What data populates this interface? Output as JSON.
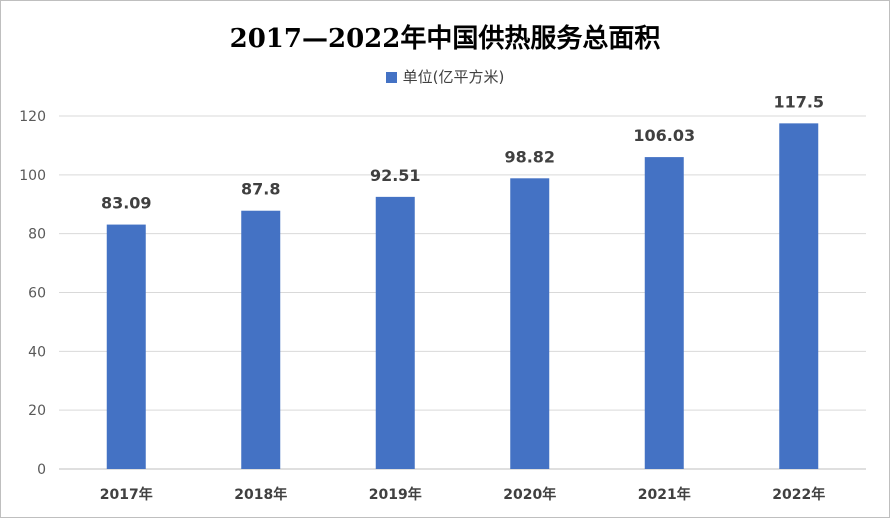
{
  "chart_data": {
    "type": "bar",
    "title": "2017—2022年中国供热服务总面积",
    "categories": [
      "2017年",
      "2018年",
      "2019年",
      "2020年",
      "2021年",
      "2022年"
    ],
    "series": [
      {
        "name": "单位(亿平方米)",
        "values": [
          83.09,
          87.8,
          92.51,
          98.82,
          106.03,
          117.5
        ],
        "color": "#4472C4"
      }
    ],
    "data_labels": [
      "83.09",
      "87.8",
      "92.51",
      "98.82",
      "106.03",
      "117.5"
    ],
    "y_ticks": [
      0,
      20,
      40,
      60,
      80,
      100,
      120
    ],
    "ylim": [
      0,
      120
    ],
    "grid": true,
    "legend_position": "top-center"
  }
}
